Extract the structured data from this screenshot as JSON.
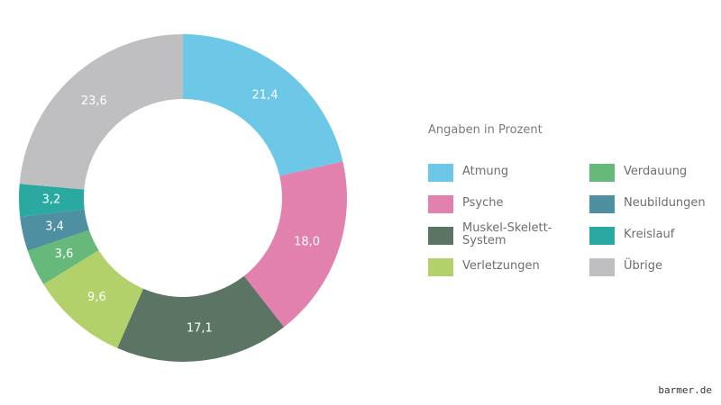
{
  "chart_data": {
    "type": "pie",
    "variant": "donut",
    "start_angle_deg": 0,
    "direction": "clockwise",
    "categories": [
      "Atmung",
      "Psyche",
      "Muskel-Skelett-System",
      "Verletzungen",
      "Verdauung",
      "Neubildungen",
      "Kreislauf",
      "Übrige"
    ],
    "values": [
      21.4,
      18.0,
      17.1,
      9.6,
      3.6,
      3.4,
      3.2,
      23.6
    ],
    "value_labels": [
      "21,4",
      "18,0",
      "17,1",
      "9,6",
      "3,6",
      "3,4",
      "3,2",
      "23,6"
    ],
    "colors": [
      "#6dc8e8",
      "#e381ae",
      "#5b7463",
      "#b3d16a",
      "#66b97a",
      "#4e8fa1",
      "#2aa9a0",
      "#bfbfc1"
    ],
    "legend_title": "Angaben in Prozent",
    "legend": [
      {
        "label_lines": [
          "Atmung"
        ],
        "color": "#6dc8e8"
      },
      {
        "label_lines": [
          "Psyche"
        ],
        "color": "#e381ae"
      },
      {
        "label_lines": [
          "Muskel-Skelett-",
          "System"
        ],
        "color": "#5b7463"
      },
      {
        "label_lines": [
          "Verletzungen"
        ],
        "color": "#b3d16a"
      },
      {
        "label_lines": [
          "Verdauung"
        ],
        "color": "#66b97a"
      },
      {
        "label_lines": [
          "Neubildungen"
        ],
        "color": "#4e8fa1"
      },
      {
        "label_lines": [
          "Kreislauf"
        ],
        "color": "#2aa9a0"
      },
      {
        "label_lines": [
          "Übrige"
        ],
        "color": "#bfbfc1"
      }
    ],
    "legend_placement": "right",
    "title": ""
  },
  "watermark": "barmer.de"
}
